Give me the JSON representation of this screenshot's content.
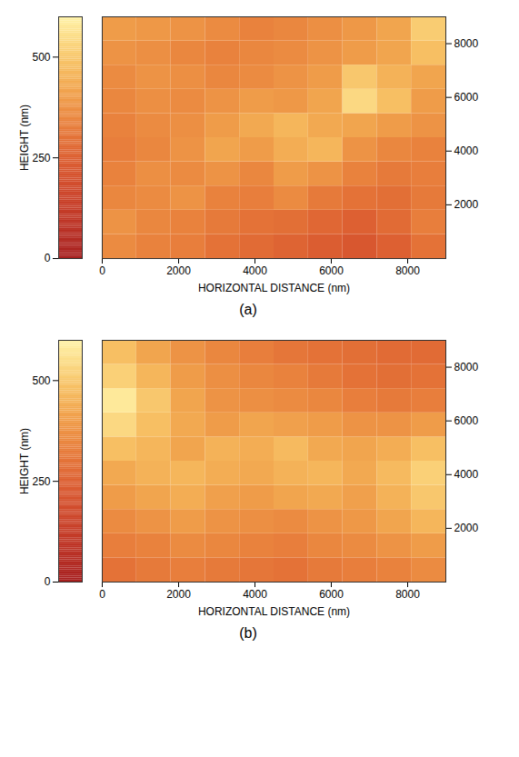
{
  "chart_data": [
    {
      "type": "heatmap",
      "caption": "(a)",
      "x_label": "HORIZONTAL DISTANCE (nm)",
      "height_label": "HEIGHT (nm)",
      "xlim": [
        0,
        9000
      ],
      "xticks": [
        0,
        2000,
        4000,
        6000,
        8000
      ],
      "ylim": [
        0,
        9000
      ],
      "yticks": [
        2000,
        4000,
        6000,
        8000
      ],
      "x_edges": [
        0,
        900,
        1800,
        2700,
        3600,
        4500,
        5400,
        6300,
        7200,
        8100,
        9000
      ],
      "y_edges": [
        0,
        900,
        1800,
        2700,
        3600,
        4500,
        5400,
        6300,
        7200,
        8100,
        9000
      ],
      "heights": [
        [
          360,
          340,
          330,
          300,
          280,
          260,
          240,
          220,
          250,
          300
        ],
        [
          380,
          350,
          340,
          320,
          300,
          290,
          270,
          250,
          280,
          330
        ],
        [
          350,
          360,
          380,
          340,
          330,
          360,
          320,
          300,
          290,
          320
        ],
        [
          340,
          370,
          360,
          380,
          350,
          400,
          380,
          340,
          320,
          330
        ],
        [
          330,
          350,
          380,
          420,
          400,
          440,
          460,
          380,
          350,
          340
        ],
        [
          340,
          360,
          370,
          400,
          430,
          460,
          430,
          420,
          400,
          380
        ],
        [
          350,
          370,
          360,
          380,
          400,
          390,
          420,
          540,
          480,
          400
        ],
        [
          360,
          380,
          370,
          350,
          360,
          380,
          400,
          500,
          450,
          420
        ],
        [
          380,
          370,
          350,
          340,
          350,
          360,
          380,
          400,
          420,
          480
        ],
        [
          400,
          390,
          380,
          360,
          340,
          350,
          370,
          390,
          420,
          510
        ]
      ],
      "height_lim": [
        0,
        600
      ],
      "height_ticks": [
        0,
        250,
        500
      ]
    },
    {
      "type": "heatmap",
      "caption": "(b)",
      "x_label": "HORIZONTAL DISTANCE (nm)",
      "height_label": "HEIGHT (nm)",
      "xlim": [
        0,
        9000
      ],
      "xticks": [
        0,
        2000,
        4000,
        6000,
        8000
      ],
      "ylim": [
        0,
        9000
      ],
      "yticks": [
        2000,
        4000,
        6000,
        8000
      ],
      "x_edges": [
        0,
        900,
        1800,
        2700,
        3600,
        4500,
        5400,
        6300,
        7200,
        8100,
        9000
      ],
      "y_edges": [
        0,
        900,
        1800,
        2700,
        3600,
        4500,
        5400,
        6300,
        7200,
        8100,
        9000
      ],
      "heights": [
        [
          300,
          320,
          330,
          320,
          310,
          300,
          320,
          330,
          340,
          360
        ],
        [
          330,
          340,
          360,
          350,
          340,
          330,
          350,
          360,
          380,
          400
        ],
        [
          360,
          380,
          400,
          380,
          370,
          360,
          380,
          390,
          420,
          460
        ],
        [
          400,
          420,
          440,
          410,
          400,
          420,
          430,
          410,
          450,
          500
        ],
        [
          430,
          450,
          460,
          440,
          430,
          450,
          460,
          430,
          470,
          520
        ],
        [
          480,
          460,
          420,
          450,
          440,
          470,
          430,
          420,
          440,
          480
        ],
        [
          540,
          480,
          430,
          400,
          420,
          410,
          400,
          380,
          380,
          400
        ],
        [
          580,
          500,
          420,
          380,
          370,
          360,
          350,
          330,
          320,
          330
        ],
        [
          520,
          460,
          400,
          370,
          350,
          340,
          320,
          300,
          290,
          300
        ],
        [
          480,
          420,
          380,
          350,
          330,
          310,
          300,
          290,
          280,
          280
        ]
      ],
      "height_lim": [
        0,
        600
      ],
      "height_ticks": [
        0,
        250,
        500
      ]
    }
  ]
}
